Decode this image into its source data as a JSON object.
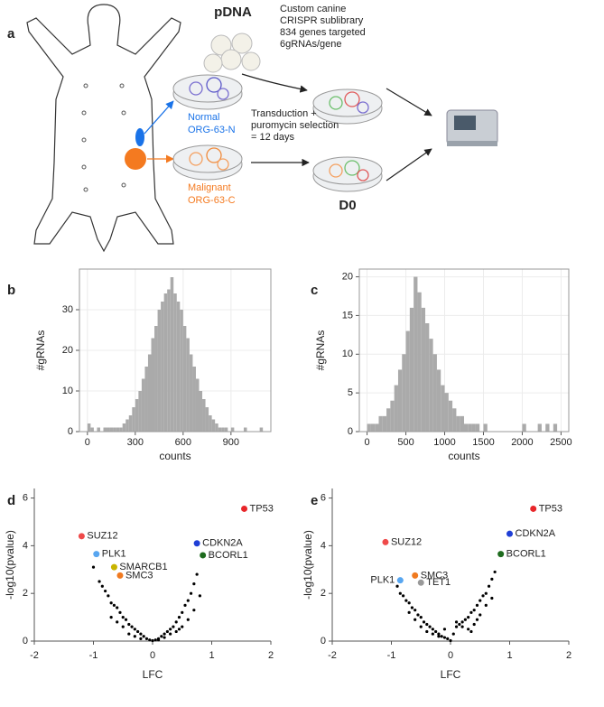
{
  "diagram": {
    "panel_label": "a",
    "pdna": "pDNA",
    "library_lines": [
      "Custom canine",
      "CRISPR sublibrary",
      "834 genes targeted",
      "6gRNAs/gene"
    ],
    "normal": [
      "Normal",
      "ORG-63-N"
    ],
    "malignant": [
      "Malignant",
      "ORG-63-C"
    ],
    "transduction": [
      "Transduction +",
      "puromycin selection",
      "= 12 days"
    ],
    "d0": "D0"
  },
  "chart_data": [
    {
      "type": "histogram",
      "panel_label": "b",
      "xlabel": "counts",
      "ylabel": "#gRNAs",
      "color": "#aaaaaa",
      "grid": true,
      "bins": [
        0,
        20,
        40,
        60,
        80,
        100,
        120,
        140,
        160,
        180,
        200,
        220,
        240,
        260,
        280,
        300,
        320,
        340,
        360,
        380,
        400,
        420,
        440,
        460,
        480,
        500,
        520,
        540,
        560,
        580,
        600,
        620,
        640,
        660,
        680,
        700,
        720,
        740,
        760,
        780,
        800,
        820,
        840,
        860,
        880,
        900,
        920,
        940,
        960,
        980,
        1000,
        1020,
        1040,
        1060,
        1080,
        1100
      ],
      "counts": [
        2,
        1,
        0,
        1,
        0,
        1,
        1,
        1,
        1,
        1,
        1,
        2,
        3,
        4,
        6,
        8,
        10,
        13,
        16,
        19,
        23,
        26,
        30,
        32,
        34,
        35,
        38,
        34,
        32,
        30,
        26,
        23,
        19,
        16,
        13,
        10,
        8,
        6,
        4,
        3,
        2,
        1,
        1,
        1,
        0,
        1,
        0,
        0,
        0,
        1,
        0,
        0,
        0,
        0,
        1
      ],
      "xlim": [
        -50,
        1150
      ],
      "xticks": [
        0,
        300,
        600,
        900
      ],
      "ylim": [
        0,
        40
      ],
      "yticks": [
        0,
        10,
        20,
        30
      ]
    },
    {
      "type": "histogram",
      "panel_label": "c",
      "xlabel": "counts",
      "ylabel": "#gRNAs",
      "color": "#aaaaaa",
      "grid": true,
      "bins": [
        0,
        50,
        100,
        150,
        200,
        250,
        300,
        350,
        400,
        450,
        500,
        550,
        600,
        650,
        700,
        750,
        800,
        850,
        900,
        950,
        1000,
        1050,
        1100,
        1150,
        1200,
        1250,
        1300,
        1350,
        1400,
        1450,
        1500,
        1550,
        1600,
        1650,
        1700,
        1750,
        1800,
        1850,
        1900,
        1950,
        2000,
        2050,
        2100,
        2150,
        2200,
        2250,
        2300,
        2350,
        2400,
        2450,
        2500
      ],
      "counts": [
        1,
        1,
        1,
        2,
        2,
        3,
        4,
        6,
        8,
        10,
        13,
        16,
        20,
        18,
        16,
        14,
        12,
        10,
        8,
        6,
        5,
        4,
        3,
        2,
        2,
        1,
        1,
        1,
        1,
        0,
        1,
        0,
        0,
        0,
        0,
        0,
        0,
        0,
        0,
        0,
        1,
        0,
        0,
        0,
        1,
        0,
        1,
        0,
        1,
        0
      ],
      "xlim": [
        -100,
        2600
      ],
      "xticks": [
        0,
        500,
        1000,
        1500,
        2000,
        2500
      ],
      "ylim": [
        0,
        21
      ],
      "yticks": [
        0,
        5,
        10,
        15,
        20
      ]
    },
    {
      "type": "scatter",
      "panel_label": "d",
      "xlabel": "LFC",
      "ylabel": "-log10(pvalue)",
      "xlim": [
        -2,
        2
      ],
      "xticks": [
        -2,
        -1,
        0,
        1,
        2
      ],
      "ylim": [
        0,
        6.4
      ],
      "yticks": [
        0,
        2,
        4,
        6
      ],
      "series": [
        {
          "color": "#000000",
          "x": [
            -1.0,
            -0.9,
            -0.85,
            -0.8,
            -0.75,
            -0.7,
            -0.65,
            -0.6,
            -0.55,
            -0.5,
            -0.45,
            -0.4,
            -0.35,
            -0.3,
            -0.25,
            -0.2,
            -0.15,
            -0.1,
            -0.05,
            0,
            0.05,
            0.1,
            0.15,
            0.2,
            0.25,
            0.3,
            0.35,
            0.4,
            0.45,
            0.5,
            0.55,
            0.6,
            0.65,
            0.7,
            0.75,
            0.8,
            -0.6,
            -0.4,
            -0.3,
            -0.2,
            0.1,
            0.2,
            0.3,
            0.4,
            0.5,
            0.6,
            -0.5,
            0.45,
            -0.7,
            0.7
          ],
          "y": [
            3.1,
            2.5,
            2.3,
            2.1,
            1.9,
            1.6,
            1.5,
            1.4,
            1.2,
            1.0,
            0.9,
            0.7,
            0.6,
            0.5,
            0.4,
            0.3,
            0.2,
            0.1,
            0.05,
            0.02,
            0.05,
            0.1,
            0.2,
            0.3,
            0.4,
            0.5,
            0.6,
            0.8,
            1.0,
            1.2,
            1.5,
            1.7,
            2.0,
            2.4,
            2.8,
            1.9,
            0.8,
            0.3,
            0.2,
            0.1,
            0.05,
            0.15,
            0.3,
            0.4,
            0.6,
            0.9,
            0.6,
            0.5,
            1.0,
            1.3
          ]
        }
      ],
      "annotations": [
        {
          "label": "TP53",
          "x": 1.55,
          "y": 5.55,
          "color": "#e8262a"
        },
        {
          "label": "SUZ12",
          "x": -1.2,
          "y": 4.4,
          "color": "#ef4a4a"
        },
        {
          "label": "CDKN2A",
          "x": 0.75,
          "y": 4.1,
          "color": "#1f3fd6"
        },
        {
          "label": "PLK1",
          "x": -0.95,
          "y": 3.65,
          "color": "#58a6f0"
        },
        {
          "label": "BCORL1",
          "x": 0.85,
          "y": 3.6,
          "color": "#1e6b1e"
        },
        {
          "label": "SMARCB1",
          "x": -0.65,
          "y": 3.1,
          "color": "#c8b400"
        },
        {
          "label": "SMC3",
          "x": -0.55,
          "y": 2.75,
          "color": "#f07a20"
        }
      ]
    },
    {
      "type": "scatter",
      "panel_label": "e",
      "xlabel": "LFC",
      "ylabel": "-log10(pvalue)",
      "xlim": [
        -2,
        2
      ],
      "xticks": [
        -2,
        -1,
        0,
        1,
        2
      ],
      "ylim": [
        0,
        6.4
      ],
      "yticks": [
        0,
        2,
        4,
        6
      ],
      "series": [
        {
          "color": "#000000",
          "x": [
            -0.9,
            -0.85,
            -0.8,
            -0.75,
            -0.7,
            -0.65,
            -0.6,
            -0.55,
            -0.5,
            -0.45,
            -0.4,
            -0.35,
            -0.3,
            -0.25,
            -0.2,
            -0.15,
            -0.1,
            -0.05,
            0,
            0.05,
            0.1,
            0.15,
            0.2,
            0.25,
            0.3,
            0.35,
            0.4,
            0.45,
            0.5,
            0.55,
            0.6,
            0.65,
            0.7,
            0.75,
            -0.6,
            -0.4,
            -0.3,
            -0.2,
            0.1,
            0.2,
            0.3,
            0.4,
            0.5,
            0.6,
            -0.5,
            0.45,
            -0.7,
            0.7,
            -0.1,
            0.35
          ],
          "y": [
            2.3,
            2.0,
            1.9,
            1.7,
            1.6,
            1.4,
            1.3,
            1.1,
            1.0,
            0.8,
            0.7,
            0.6,
            0.5,
            0.4,
            0.3,
            0.2,
            0.15,
            0.1,
            0.02,
            0.3,
            0.6,
            0.7,
            0.8,
            0.9,
            1.0,
            1.2,
            1.3,
            1.5,
            1.7,
            1.9,
            2.0,
            2.3,
            2.6,
            2.9,
            0.9,
            0.4,
            0.3,
            0.2,
            0.8,
            0.6,
            0.5,
            0.7,
            1.1,
            1.5,
            0.6,
            0.9,
            1.2,
            1.8,
            0.5,
            0.4
          ]
        }
      ],
      "annotations": [
        {
          "label": "TP53",
          "x": 1.4,
          "y": 5.55,
          "color": "#e8262a"
        },
        {
          "label": "SUZ12",
          "x": -1.1,
          "y": 4.15,
          "color": "#ef4a4a"
        },
        {
          "label": "CDKN2A",
          "x": 1.0,
          "y": 4.5,
          "color": "#1f3fd6"
        },
        {
          "label": "BCORL1",
          "x": 0.85,
          "y": 3.65,
          "color": "#1e6b1e"
        },
        {
          "label": "SMC3",
          "x": -0.6,
          "y": 2.75,
          "color": "#f07a20"
        },
        {
          "label": "PLK1",
          "x": -0.85,
          "y": 2.55,
          "color": "#58a6f0"
        },
        {
          "label": "TET1",
          "x": -0.5,
          "y": 2.45,
          "color": "#999999"
        }
      ]
    }
  ]
}
